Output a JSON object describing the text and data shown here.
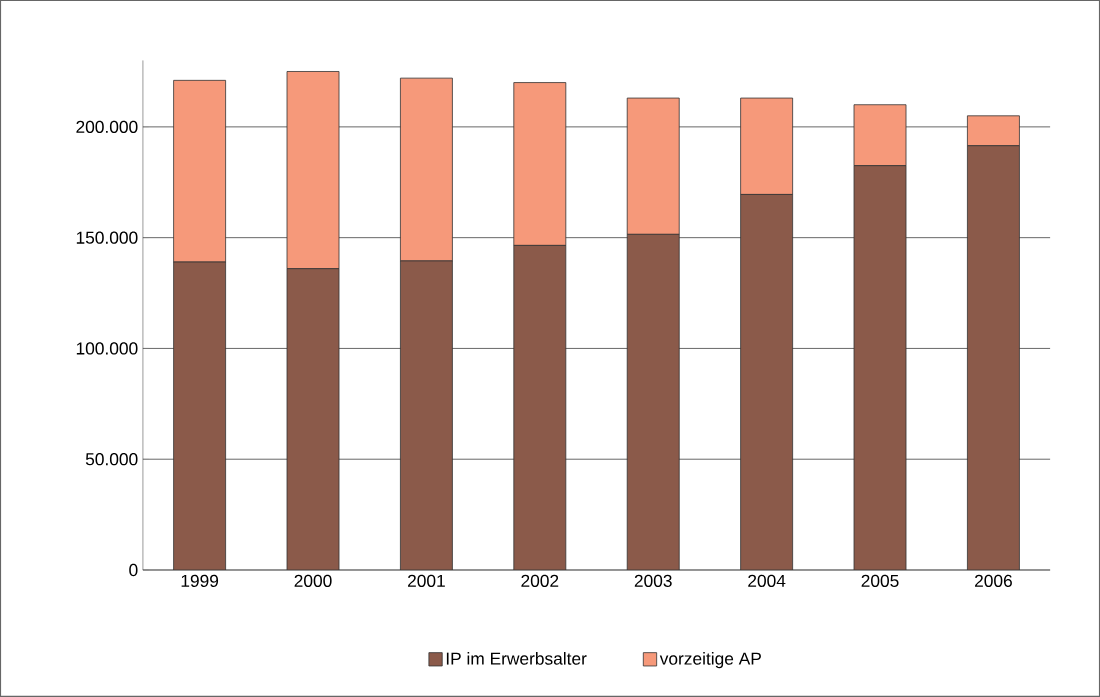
{
  "chart_data": {
    "type": "bar",
    "stacked": true,
    "categories": [
      "1999",
      "2000",
      "2001",
      "2002",
      "2003",
      "2004",
      "2005",
      "2006"
    ],
    "series": [
      {
        "name": "IP im Erwerbsalter",
        "color": "#8b5a4a",
        "values": [
          139000,
          136000,
          139500,
          146500,
          151500,
          169500,
          182500,
          191500
        ]
      },
      {
        "name": "vorzeitige AP",
        "color": "#f6997a",
        "values": [
          82000,
          89000,
          82500,
          73500,
          61500,
          43500,
          27500,
          13500
        ]
      }
    ],
    "ylim": [
      0,
      230000
    ],
    "yticks": [
      {
        "value": 0,
        "label": "0"
      },
      {
        "value": 50000,
        "label": "50.000"
      },
      {
        "value": 100000,
        "label": "100.000"
      },
      {
        "value": 150000,
        "label": "150.000"
      },
      {
        "value": 200000,
        "label": "200.000"
      }
    ],
    "grid": "y",
    "legend": "bottom"
  }
}
